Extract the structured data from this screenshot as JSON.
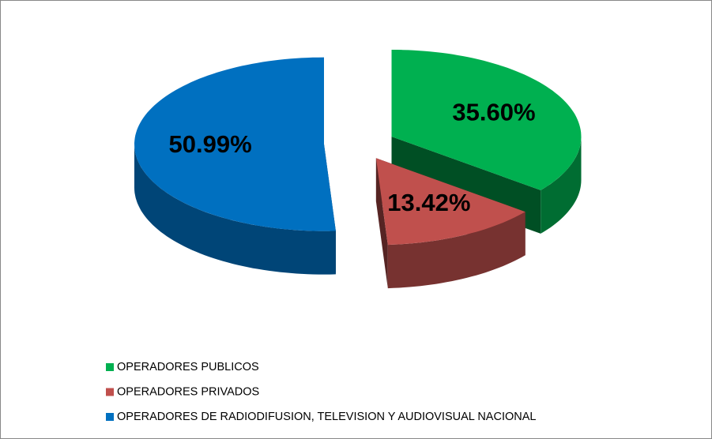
{
  "chart_data": {
    "type": "pie3d",
    "categories": [
      "OPERADORES PUBLICOS",
      "OPERADORES PRIVADOS",
      "OPERADORES DE RADIODIFUSION, TELEVISION Y AUDIOVISUAL NACIONAL"
    ],
    "values": [
      35.6,
      13.42,
      50.99
    ],
    "value_labels": [
      "35.60%",
      "13.42%",
      "50.99%"
    ],
    "colors": [
      "#00b050",
      "#c0504d",
      "#0070c0"
    ],
    "legend": "bottom"
  }
}
